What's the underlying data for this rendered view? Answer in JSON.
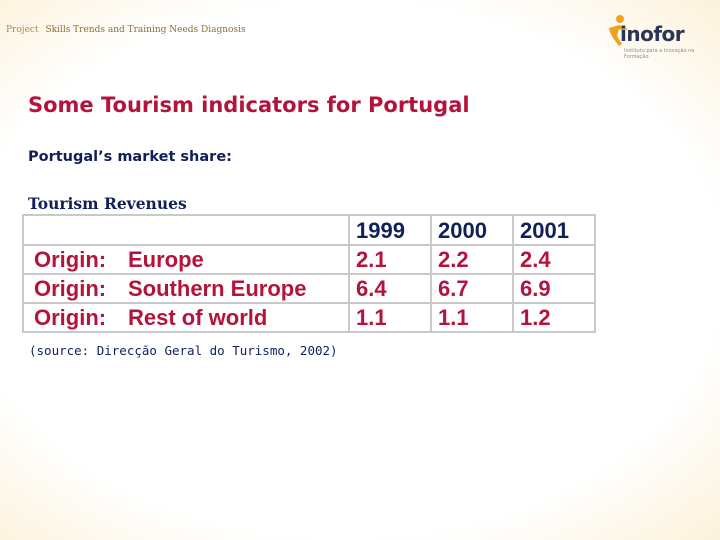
{
  "header": {
    "project_label": "Project",
    "project_title": "Skills Trends and Training Needs Diagnosis"
  },
  "logo": {
    "brand": "inofor",
    "tagline": "Instituto para a Inovação na Formação",
    "icon": "runner-figure-icon"
  },
  "slide": {
    "title": "Some Tourism indicators for Portugal",
    "subtitle": "Portugal’s market share:",
    "table_title": "Tourism Revenues",
    "source": "(source: Direcção Geral do Turismo, 2002)"
  },
  "table": {
    "columns": [
      "1999",
      "2000",
      "2001"
    ],
    "rows": [
      {
        "label": "Origin:",
        "region": "Europe",
        "values": [
          "2.1",
          "2.2",
          "2.4"
        ]
      },
      {
        "label": "Origin:",
        "region": "Southern Europe",
        "values": [
          "6.4",
          "6.7",
          "6.9"
        ]
      },
      {
        "label": "Origin:",
        "region": "Rest of world",
        "values": [
          "1.1",
          "1.1",
          "1.2"
        ]
      }
    ]
  },
  "colors": {
    "accent_red": "#b4143c",
    "navy": "#10205a",
    "logo_orange": "#f0a020",
    "background_tint": "#f7dfae"
  }
}
